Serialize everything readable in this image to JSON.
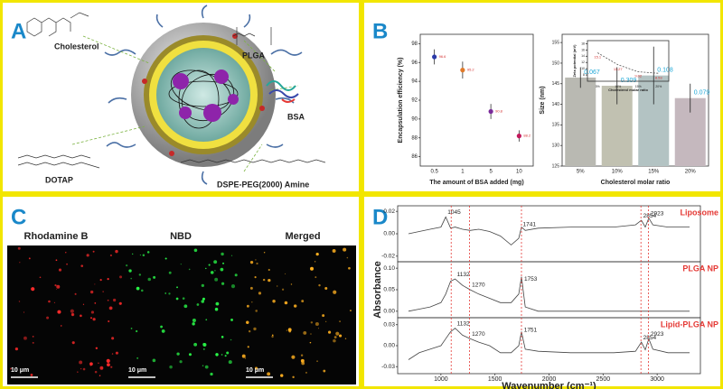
{
  "panel_labels": [
    "A",
    "B",
    "C",
    "D"
  ],
  "panel_a": {
    "labels": [
      "Cholesterol",
      "PLGA",
      "BSA",
      "DOTAP",
      "DSPE-PEG(2000) Amine"
    ]
  },
  "panel_c": {
    "channels": [
      "Rhodamine B",
      "NBD",
      "Merged"
    ],
    "scale_bar": "10 μm"
  },
  "chart_data": [
    {
      "type": "scatter",
      "categories": [
        "0.5",
        "1",
        "5",
        "10"
      ],
      "values": [
        96.6,
        95.2,
        90.8,
        88.2
      ],
      "errors": [
        0.8,
        0.9,
        0.8,
        0.6
      ],
      "colors": [
        "#2b3aa8",
        "#e07a2a",
        "#7a2a9a",
        "#c2185b"
      ],
      "ylim": [
        85,
        99
      ],
      "yticks": [
        86,
        88,
        90,
        92,
        94,
        96,
        98
      ],
      "y_label": "Encapsulation efficiency (%)",
      "x_label": "The amount of BSA added (mg)"
    },
    {
      "type": "bar",
      "categories": [
        "5%",
        "10%",
        "15%",
        "20%"
      ],
      "values": [
        146.5,
        144.5,
        147,
        141.5
      ],
      "errors": [
        2.5,
        4.5,
        7,
        3.5
      ],
      "colors": [
        "#b9b9b2",
        "#c1c1b1",
        "#b3c3c3",
        "#c5b8be"
      ],
      "annotations": [
        0.067,
        0.309,
        0.108,
        0.079
      ],
      "annotation_color": "#1ea7d6",
      "ylim": [
        125,
        157
      ],
      "yticks": [
        125,
        130,
        135,
        140,
        145,
        150,
        155
      ],
      "y_label": "Size (nm)",
      "x_label": "Cholesterol molar ratio"
    },
    {
      "type": "line",
      "categories": [
        "0%",
        "10%",
        "15%",
        "20%"
      ],
      "values": [
        15.1,
        11.27,
        9.02,
        8.53
      ],
      "color": "#555",
      "label_color": "#d32f2f",
      "ylim": [
        6,
        19
      ],
      "yticks": [
        8,
        10,
        12,
        14,
        16,
        18
      ],
      "y_label": "Zeta potential (mV)",
      "x_label": "Cholesterol molar ratio"
    },
    {
      "type": "spectrum",
      "x_label": "Wavenumber (cm⁻¹)",
      "y_label": "Absorbance",
      "xlim": [
        600,
        3400
      ],
      "xticks": [
        1000,
        1500,
        2000,
        2500,
        3000
      ],
      "reference_lines": [
        1095,
        1265,
        1745,
        2850,
        2920
      ],
      "reference_color": "#e53935",
      "name_color": "#e53935",
      "x": [
        700,
        800,
        900,
        1000,
        1045,
        1090,
        1132,
        1200,
        1270,
        1350,
        1450,
        1550,
        1650,
        1720,
        1745,
        1780,
        1900,
        2200,
        2600,
        2800,
        2854,
        2890,
        2923,
        2960,
        3100,
        3300
      ],
      "series": [
        {
          "name": "Liposome",
          "color": "#444",
          "ylim": [
            -0.025,
            0.025
          ],
          "yticks": [
            -0.02,
            {
              "value": 0,
              "label": "0.00"
            },
            0.02
          ],
          "peaks": [
            1045,
            1741,
            2854,
            2923
          ],
          "values": [
            0.0,
            0.002,
            0.004,
            0.006,
            0.015,
            0.005,
            0.006,
            0.004,
            0.003,
            0.004,
            0.002,
            -0.002,
            -0.01,
            -0.004,
            0.006,
            0.003,
            0.005,
            0.006,
            0.006,
            0.008,
            0.012,
            0.006,
            0.014,
            0.008,
            0.006,
            0.006
          ]
        },
        {
          "name": "PLGA NP",
          "color": "#444",
          "ylim": [
            -0.015,
            0.115
          ],
          "yticks": [
            {
              "value": 0,
              "label": "0.00"
            },
            0.05,
            {
              "value": 0.1,
              "label": "0.10"
            }
          ],
          "peaks": [
            1132,
            1270,
            1753
          ],
          "values": [
            0.0,
            0.005,
            0.01,
            0.02,
            0.04,
            0.07,
            0.075,
            0.06,
            0.05,
            0.04,
            0.03,
            0.02,
            0.02,
            0.04,
            0.08,
            0.01,
            0.0,
            0.0,
            0.0,
            0.0,
            0.0,
            0.0,
            0.0,
            0.0,
            0.0,
            0.0
          ]
        },
        {
          "name": "Lipid-PLGA NP",
          "color": "#444",
          "ylim": [
            -0.04,
            0.04
          ],
          "yticks": [
            -0.03,
            {
              "value": 0,
              "label": "0.00"
            },
            0.03
          ],
          "peaks": [
            1132,
            1270,
            1751,
            2854,
            2923
          ],
          "values": [
            -0.02,
            -0.01,
            -0.005,
            0.0,
            0.01,
            0.02,
            0.025,
            0.015,
            0.01,
            0.005,
            0.0,
            -0.01,
            -0.01,
            0.0,
            0.02,
            -0.005,
            -0.008,
            -0.01,
            -0.01,
            -0.008,
            0.005,
            -0.006,
            0.01,
            -0.005,
            -0.01,
            -0.01
          ]
        }
      ]
    }
  ]
}
